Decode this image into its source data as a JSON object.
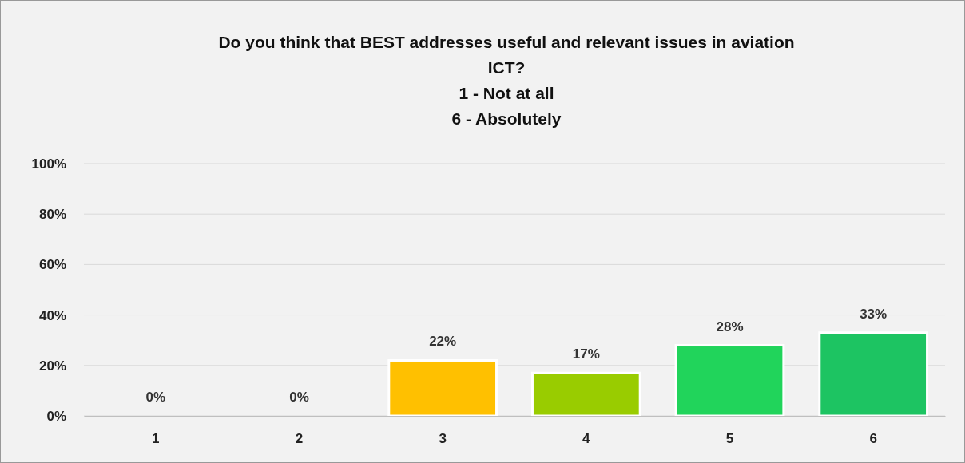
{
  "chart_data": {
    "type": "bar",
    "title": "Do you think that BEST addresses useful and relevant issues in aviation\nICT?\n1 - Not at all\n6 - Absolutely",
    "categories": [
      "1",
      "2",
      "3",
      "4",
      "5",
      "6"
    ],
    "values": [
      0,
      0,
      22,
      17,
      28,
      33
    ],
    "colors": [
      "#ff0000",
      "#ff9900",
      "#ffc000",
      "#99cc00",
      "#21d45b",
      "#1dc462"
    ],
    "ylim": [
      0,
      100
    ],
    "yticks": [
      {
        "value": 0,
        "label": "0%"
      },
      {
        "value": 20,
        "label": "20%"
      },
      {
        "value": 40,
        "label": "40%"
      },
      {
        "value": 60,
        "label": "60%"
      },
      {
        "value": 80,
        "label": "80%"
      },
      {
        "value": 100,
        "label": "100%"
      }
    ],
    "value_labels": [
      "0%",
      "0%",
      "22%",
      "17%",
      "28%",
      "33%"
    ],
    "grid": "y"
  }
}
